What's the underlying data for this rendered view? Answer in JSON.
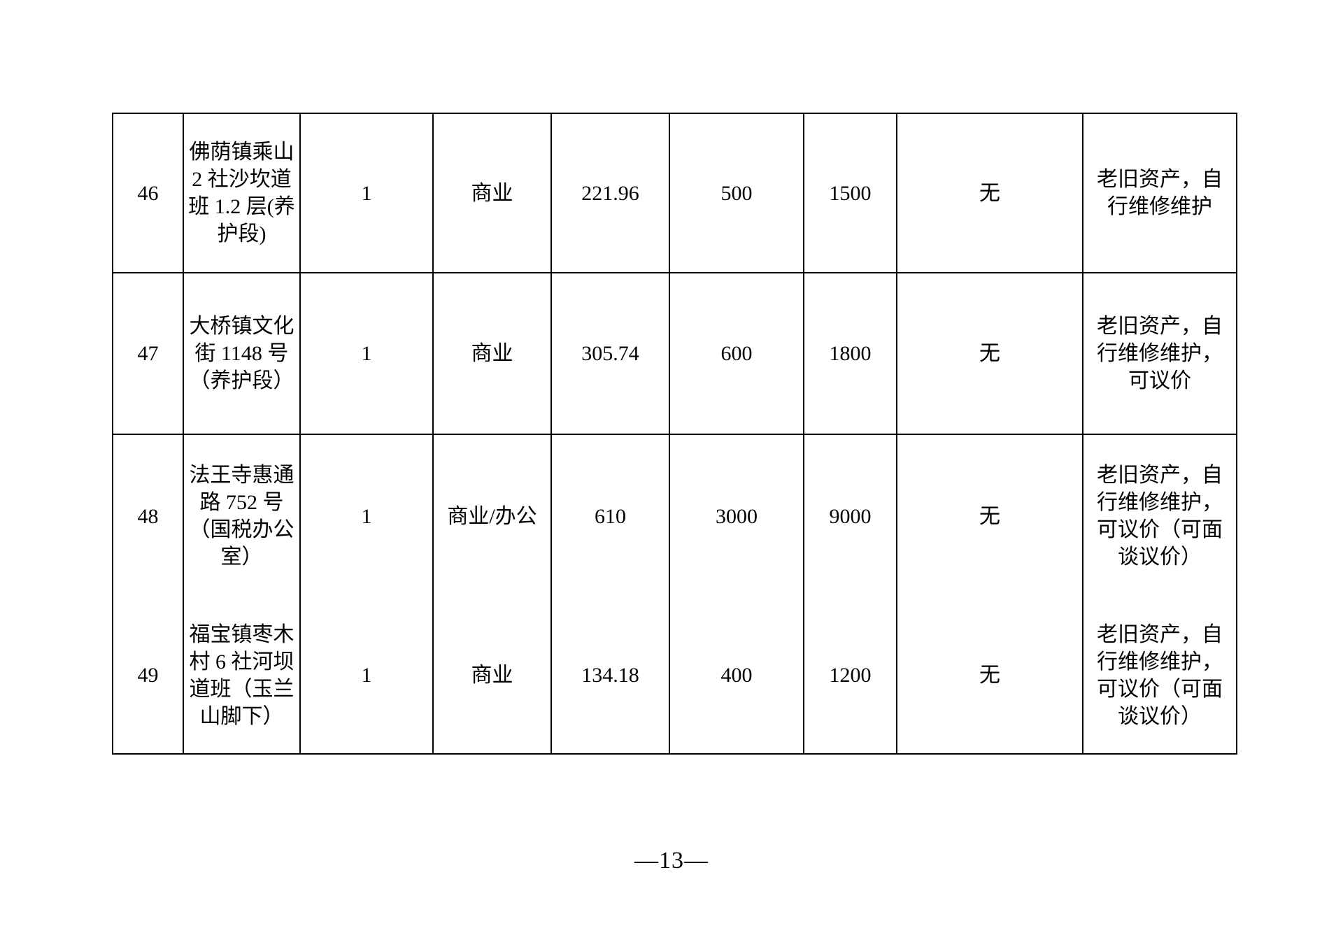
{
  "page": {
    "number": "—13—",
    "background": "#ffffff",
    "text_color": "#000000",
    "border_color": "#000000"
  },
  "table": {
    "rows": [
      {
        "cells": [
          "46",
          "佛荫镇乘山 2 社沙坎道班 1.2 层(养护段)",
          "1",
          "商业",
          "221.96",
          "500",
          "1500",
          "无",
          "老旧资产，自行维修维护"
        ]
      },
      {
        "cells": [
          "47",
          "大桥镇文化街 1148 号（养护段）",
          "1",
          "商业",
          "305.74",
          "600",
          "1800",
          "无",
          "老旧资产，自行维修维护，可议价"
        ]
      },
      {
        "cells": [
          "48",
          "法王寺惠通路 752 号（国税办公室）",
          "1",
          "商业/办公",
          "610",
          "3000",
          "9000",
          "无",
          "老旧资产，自行维修维护，可议价（可面谈议价）"
        ]
      },
      {
        "cells": [
          "49",
          "福宝镇枣木村 6 社河坝道班（玉兰山脚下）",
          "1",
          "商业",
          "134.18",
          "400",
          "1200",
          "无",
          "老旧资产，自行维修维护，可议价（可面谈议价）"
        ]
      }
    ]
  }
}
